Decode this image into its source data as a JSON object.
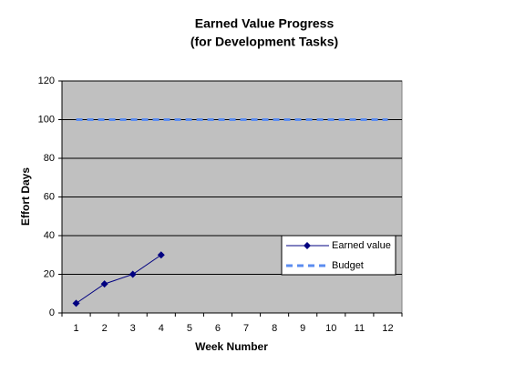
{
  "chart_data": {
    "type": "line",
    "title": "Earned Value Progress",
    "subtitle": "(for Development Tasks)",
    "x_label": "Week Number",
    "y_label": "Effort Days",
    "categories": [
      "1",
      "2",
      "3",
      "4",
      "5",
      "6",
      "7",
      "8",
      "9",
      "10",
      "11",
      "12"
    ],
    "series": [
      {
        "name": "Earned value",
        "color": "#000080",
        "values": [
          5,
          15,
          20,
          30,
          null,
          null,
          null,
          null,
          null,
          null,
          null,
          null
        ]
      },
      {
        "name": "Budget",
        "color": "#5b8cf0",
        "values": [
          100,
          100,
          100,
          100,
          100,
          100,
          100,
          100,
          100,
          100,
          100,
          100
        ]
      }
    ],
    "ylim": [
      0,
      120
    ],
    "yticks": [
      0,
      20,
      40,
      60,
      80,
      100,
      120
    ],
    "grid": true,
    "legend": "lower-right",
    "plot_background": "#c0c0c0"
  }
}
